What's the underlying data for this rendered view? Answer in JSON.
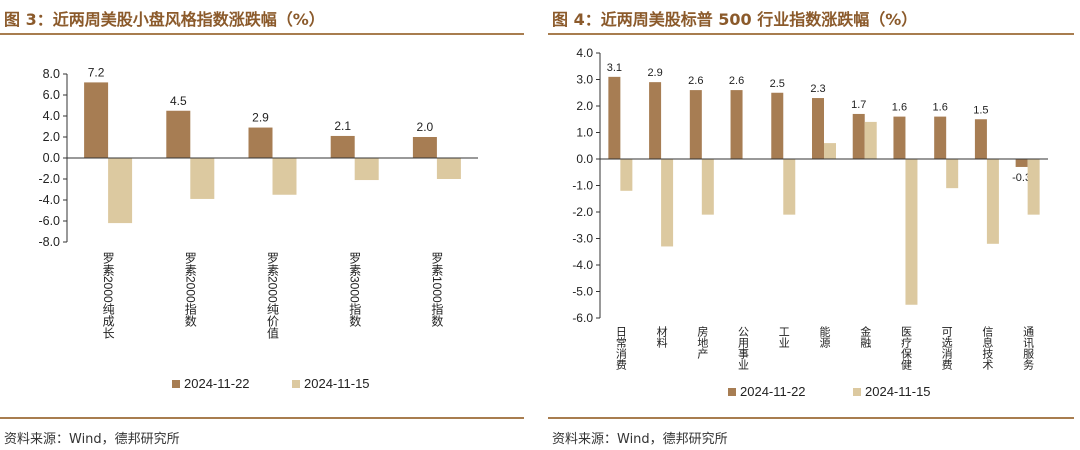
{
  "chart_data": [
    {
      "type": "bar",
      "title": "图 3：近两周美股小盘风格指数涨跌幅（%）",
      "source": "资料来源：Wind，德邦研究所",
      "categories": [
        "罗素2000纯成长",
        "罗素2000指数",
        "罗素2000纯价值",
        "罗素3000指数",
        "罗素1000指数"
      ],
      "series": [
        {
          "name": "2024-11-22",
          "color": "#a77d53",
          "values": [
            7.2,
            4.5,
            2.9,
            2.1,
            2.0
          ],
          "value_labels": [
            "7.2",
            "4.5",
            "2.9",
            "2.1",
            "2.0"
          ]
        },
        {
          "name": "2024-11-15",
          "color": "#dcc9a0",
          "values": [
            -6.2,
            -3.9,
            -3.5,
            -2.1,
            -2.0
          ]
        }
      ],
      "ylim": [
        -8,
        8
      ],
      "yticks": [
        "8.0",
        "6.0",
        "4.0",
        "2.0",
        "0.0",
        "-2.0",
        "-4.0",
        "-6.0",
        "-8.0"
      ],
      "legend": "bottom",
      "grid": false
    },
    {
      "type": "bar",
      "title": "图 4：近两周美股标普 500 行业指数涨跌幅（%）",
      "source": "资料来源：Wind，德邦研究所",
      "categories": [
        "日常消费",
        "材料",
        "房地产",
        "公用事业",
        "工业",
        "能源",
        "金融",
        "医疗保健",
        "可选消费",
        "信息技术",
        "通讯服务"
      ],
      "series": [
        {
          "name": "2024-11-22",
          "color": "#a77d53",
          "values": [
            3.1,
            2.9,
            2.6,
            2.6,
            2.5,
            2.3,
            1.7,
            1.6,
            1.6,
            1.5,
            -0.3
          ],
          "value_labels": [
            "3.1",
            "2.9",
            "2.6",
            "2.6",
            "2.5",
            "2.3",
            "1.7",
            "1.6",
            "1.6",
            "1.5",
            "-0.3"
          ]
        },
        {
          "name": "2024-11-15",
          "color": "#dcc9a0",
          "values": [
            -1.2,
            -3.3,
            -2.1,
            0.0,
            -2.1,
            0.6,
            1.4,
            -5.5,
            -1.1,
            -3.2,
            -2.1
          ]
        }
      ],
      "ylim": [
        -6,
        4
      ],
      "yticks": [
        "4.0",
        "3.0",
        "2.0",
        "1.0",
        "0.0",
        "-1.0",
        "-2.0",
        "-3.0",
        "-4.0",
        "-5.0",
        "-6.0"
      ],
      "legend": "bottom",
      "grid": false
    }
  ]
}
